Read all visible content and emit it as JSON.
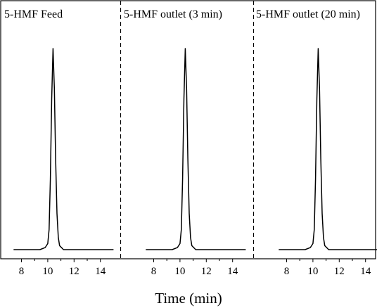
{
  "chart_data": {
    "type": "line",
    "xlabel": "Time (min)",
    "ylabel": "",
    "grid": false,
    "legend": "none",
    "x_ticks": [
      8,
      10,
      12,
      14
    ],
    "xlim": [
      7.3,
      15
    ],
    "ylim": [
      0,
      1
    ],
    "line_color": "#000000",
    "panels": [
      {
        "title": "5-HMF Feed",
        "peak_time": 10.4,
        "series": [
          {
            "x": [
              7.4,
              9.4,
              9.8,
              10.0,
              10.1,
              10.2,
              10.3,
              10.4,
              10.5,
              10.6,
              10.7,
              10.8,
              10.9,
              11.2,
              15.0
            ],
            "y": [
              0.0,
              0.0,
              0.01,
              0.03,
              0.1,
              0.35,
              0.75,
              1.0,
              0.8,
              0.45,
              0.18,
              0.06,
              0.02,
              0.0,
              0.0
            ]
          }
        ]
      },
      {
        "title": "5-HMF outlet (3 min)",
        "peak_time": 10.4,
        "series": [
          {
            "x": [
              7.4,
              9.4,
              9.8,
              10.0,
              10.1,
              10.2,
              10.3,
              10.4,
              10.5,
              10.6,
              10.7,
              10.8,
              10.9,
              11.2,
              15.0
            ],
            "y": [
              0.0,
              0.0,
              0.01,
              0.03,
              0.1,
              0.35,
              0.75,
              1.0,
              0.8,
              0.45,
              0.18,
              0.06,
              0.02,
              0.0,
              0.0
            ]
          }
        ]
      },
      {
        "title": "5-HMF outlet (20 min)",
        "peak_time": 10.4,
        "series": [
          {
            "x": [
              7.4,
              9.4,
              9.8,
              10.0,
              10.1,
              10.2,
              10.3,
              10.4,
              10.5,
              10.6,
              10.7,
              10.8,
              10.9,
              11.2,
              15.0
            ],
            "y": [
              0.0,
              0.0,
              0.01,
              0.03,
              0.1,
              0.35,
              0.75,
              1.0,
              0.8,
              0.45,
              0.18,
              0.06,
              0.02,
              0.0,
              0.0
            ]
          }
        ]
      }
    ]
  }
}
